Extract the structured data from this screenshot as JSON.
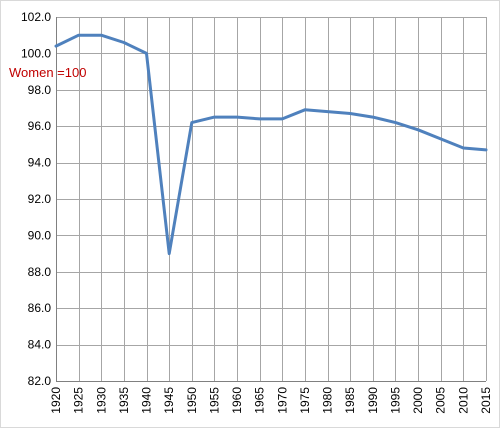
{
  "chart_data": {
    "type": "line",
    "title": "",
    "xlabel": "",
    "ylabel": "",
    "annotation": "Women =100",
    "x": [
      1920,
      1925,
      1930,
      1935,
      1940,
      1945,
      1950,
      1955,
      1960,
      1965,
      1970,
      1975,
      1980,
      1985,
      1990,
      1995,
      2000,
      2005,
      2010,
      2015
    ],
    "x_tick_labels": [
      "1920",
      "1925",
      "1930",
      "1935",
      "1940",
      "1945",
      "1950",
      "1955",
      "1960",
      "1965",
      "1970",
      "1975",
      "1980",
      "1985",
      "1990",
      "1995",
      "2000",
      "2005",
      "2010",
      "2015"
    ],
    "series": [
      {
        "values": [
          100.4,
          101.0,
          101.0,
          100.6,
          100.0,
          89.0,
          96.2,
          96.5,
          96.5,
          96.4,
          96.4,
          96.9,
          96.8,
          96.7,
          96.5,
          96.2,
          95.8,
          95.3,
          94.8,
          94.7
        ],
        "color": "#4f81bd"
      }
    ],
    "ylim": [
      82.0,
      102.0
    ],
    "y_ticks": [
      82.0,
      84.0,
      86.0,
      88.0,
      90.0,
      92.0,
      94.0,
      96.0,
      98.0,
      100.0,
      102.0
    ],
    "y_tick_labels": [
      "82.0",
      "84.0",
      "86.0",
      "88.0",
      "90.0",
      "92.0",
      "94.0",
      "96.0",
      "98.0",
      "100.0",
      "102.0"
    ],
    "grid": true,
    "legend": "none"
  }
}
